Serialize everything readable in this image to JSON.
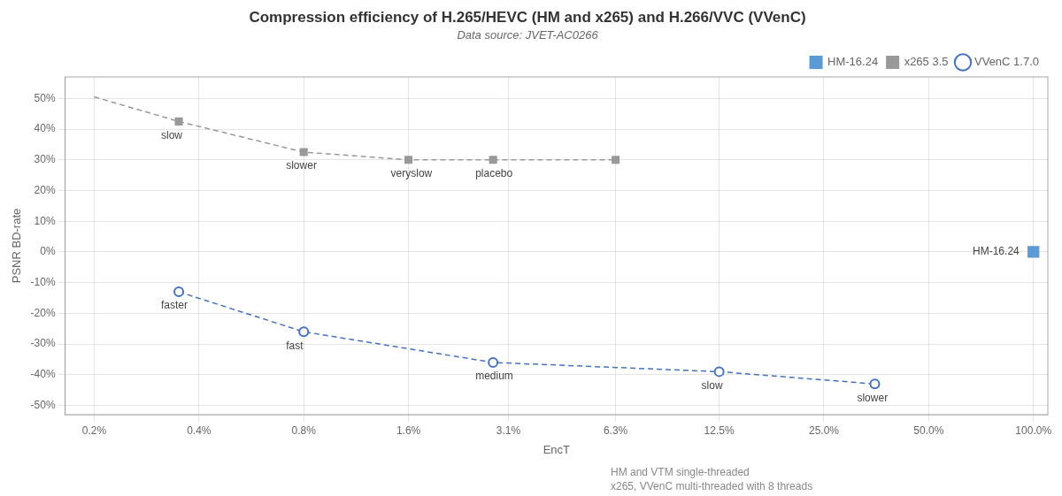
{
  "chart_data": {
    "type": "line",
    "title": "Compression efficiency of H.265/HEVC (HM and x265) and H.266/VVC (VVenC)",
    "subtitle": "Data source: JVET-AC0266",
    "x_label": "EncT",
    "y_label": "PSNR BD-rate",
    "footnotes": [
      "HM and VTM single-threaded",
      "x265, VVenC multi-threaded with 8 threads"
    ],
    "log": "x",
    "grid": true,
    "legend": "upper right",
    "xlim": [
      0.165,
      110.0
    ],
    "ylim": [
      -53,
      57
    ],
    "xticks": [
      {
        "value": 0.2,
        "label": "0.2%"
      },
      {
        "value": 0.4,
        "label": "0.4%"
      },
      {
        "value": 0.8,
        "label": "0.8%"
      },
      {
        "value": 1.6,
        "label": "1.6%"
      },
      {
        "value": 3.1,
        "label": "3.1%"
      },
      {
        "value": 6.3,
        "label": "6.3%"
      },
      {
        "value": 12.5,
        "label": "12.5%"
      },
      {
        "value": 25.0,
        "label": "25.0%"
      },
      {
        "value": 50.0,
        "label": "50.0%"
      },
      {
        "value": 100.0,
        "label": "100.0%"
      }
    ],
    "yticks": [
      {
        "value": -50,
        "label": "-50%"
      },
      {
        "value": -40,
        "label": "-40%"
      },
      {
        "value": -30,
        "label": "-30%"
      },
      {
        "value": -20,
        "label": "-20%"
      },
      {
        "value": -10,
        "label": "-10%"
      },
      {
        "value": 0,
        "label": "0%"
      },
      {
        "value": 10,
        "label": "10%"
      },
      {
        "value": 20,
        "label": "20%"
      },
      {
        "value": 30,
        "label": "30%"
      },
      {
        "value": 40,
        "label": "40%"
      },
      {
        "value": 50,
        "label": "50%"
      }
    ],
    "series": [
      {
        "name": "HM-16.24",
        "color": "#5b9bd5",
        "marker": "square",
        "line_style": "none",
        "x": [
          100.0
        ],
        "values": [
          0.0
        ]
      },
      {
        "name": "x265 3.5",
        "color": "#999999",
        "marker": "square",
        "line_style": "dashed",
        "x": [
          0.35,
          0.8,
          1.6,
          2.8,
          6.3
        ],
        "values": [
          42.5,
          32.5,
          30.0,
          30.0,
          30.0
        ]
      },
      {
        "name": "VVenC 1.7.0",
        "color": "#4472c4",
        "marker": "circle",
        "line_style": "dashed",
        "x": [
          0.35,
          0.8,
          2.8,
          12.5,
          35.0
        ],
        "values": [
          -13.0,
          -26.0,
          -36.0,
          -39.0,
          -43.0
        ]
      },
      {
        "color": "#999999",
        "marker": "none",
        "line_style": "dashed",
        "x": [
          0.2,
          0.35
        ],
        "values": [
          50.5,
          42.5
        ]
      }
    ],
    "annotations": [
      {
        "text": "slow",
        "x": 0.35,
        "y": 42.5
      },
      {
        "text": "slower",
        "x": 0.8,
        "y": 32.5
      },
      {
        "text": "veryslow",
        "x": 1.6,
        "y": 30.0
      },
      {
        "text": "placebo",
        "x": 2.8,
        "y": 30.0
      },
      {
        "text": "faster",
        "x": 0.35,
        "y": -13.0
      },
      {
        "text": "fast",
        "x": 0.8,
        "y": -26.0
      },
      {
        "text": "medium",
        "x": 2.8,
        "y": -36.0
      },
      {
        "text": "slow",
        "x": 12.5,
        "y": -39.0
      },
      {
        "text": "slower",
        "x": 35.0,
        "y": -43.0
      },
      {
        "text": "HM-16.24",
        "x": 100.0,
        "y": 0.0
      }
    ]
  }
}
